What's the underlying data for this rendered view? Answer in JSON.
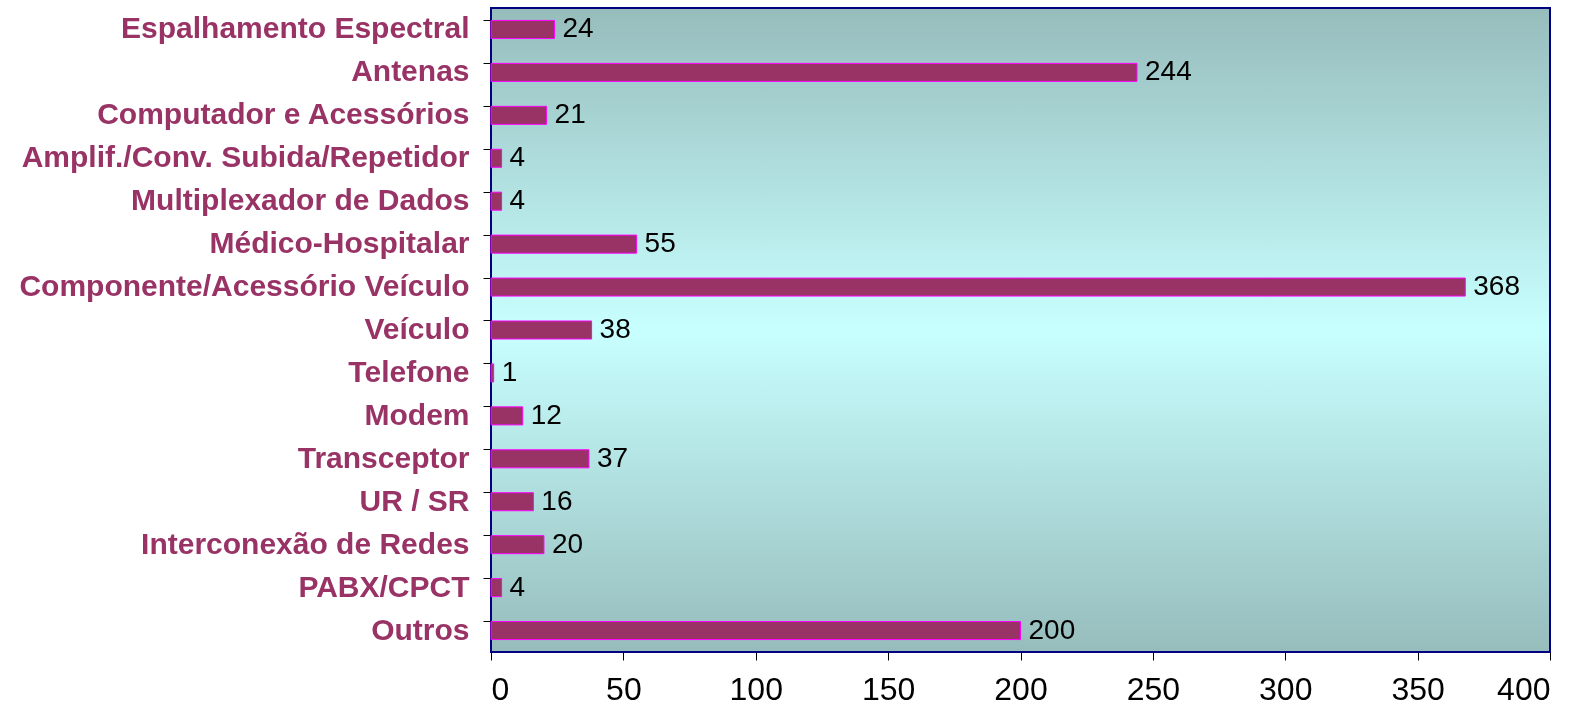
{
  "chart_data": {
    "type": "bar",
    "orientation": "horizontal",
    "categories": [
      "Espalhamento Espectral",
      "Antenas",
      "Computador e Acessórios",
      "Amplif./Conv. Subida/Repetidor",
      "Multiplexador de Dados",
      "Médico-Hospitalar",
      "Componente/Acessório Veículo",
      "Veículo",
      "Telefone",
      "Modem",
      "Transceptor",
      "UR / SR",
      "Interconexão de Redes",
      "PABX/CPCT",
      "Outros"
    ],
    "values": [
      24,
      244,
      21,
      4,
      4,
      55,
      368,
      38,
      1,
      12,
      37,
      16,
      20,
      4,
      200
    ],
    "color": "#993366",
    "xlim": [
      0,
      400
    ],
    "xticks": [
      0,
      50,
      100,
      150,
      200,
      250,
      300,
      350,
      400
    ],
    "data_labels": true
  }
}
